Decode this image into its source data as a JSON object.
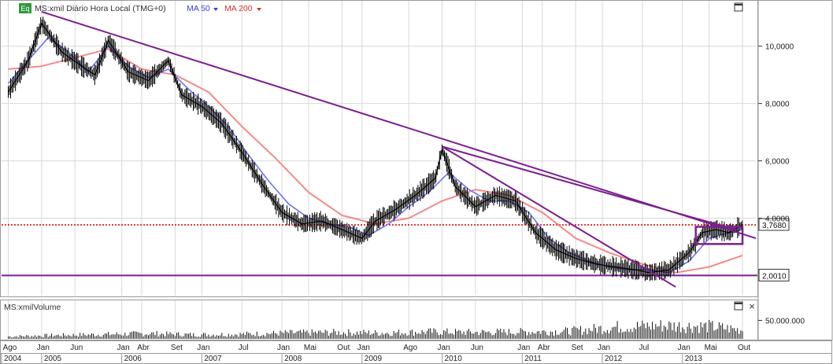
{
  "header": {
    "eq_badge": "Eq",
    "symbol_label": "MS:xmil Diário Hora Local (TMG+0)",
    "ma50_label": "MA 50",
    "ma200_label": "MA 200",
    "window_button": "□"
  },
  "volume_panel": {
    "label": "MS:xmilVolume",
    "restore_button": "□",
    "close_button": "×"
  },
  "colors": {
    "price": "#000000",
    "ma50": "#6f74f2",
    "ma200": "#f28a8a",
    "trendline": "#7b1f8f",
    "level_line": "#d00000",
    "grid": "#d8d8d8",
    "badge_green": "#2e9a3c"
  },
  "chart_data": [
    {
      "type": "line",
      "panel": "price",
      "series": [
        {
          "name": "MS:xmil",
          "x": [
            "2004-08",
            "2004-11",
            "2005-01",
            "2005-04",
            "2005-07",
            "2005-09",
            "2005-11",
            "2006-02",
            "2006-05",
            "2006-08",
            "2006-10",
            "2007-01",
            "2007-04",
            "2007-07",
            "2007-10",
            "2008-01",
            "2008-04",
            "2008-07",
            "2008-10",
            "2009-01",
            "2009-03",
            "2009-06",
            "2009-09",
            "2009-12",
            "2010-01",
            "2010-03",
            "2010-06",
            "2010-09",
            "2010-12",
            "2011-03",
            "2011-06",
            "2011-09",
            "2011-12",
            "2012-03",
            "2012-06",
            "2012-08",
            "2012-11",
            "2013-02",
            "2013-04",
            "2013-06",
            "2013-08",
            "2013-10"
          ],
          "values": [
            8.4,
            9.5,
            10.8,
            9.8,
            9.3,
            9.0,
            10.2,
            9.1,
            8.8,
            9.5,
            8.3,
            7.9,
            7.3,
            6.3,
            5.2,
            4.2,
            3.8,
            3.9,
            3.6,
            3.3,
            3.9,
            4.3,
            4.8,
            5.4,
            6.4,
            5.1,
            4.4,
            4.8,
            4.6,
            3.5,
            2.9,
            2.6,
            2.4,
            2.3,
            2.2,
            2.1,
            2.2,
            2.8,
            3.5,
            3.6,
            3.5,
            3.77
          ]
        },
        {
          "name": "MA 50",
          "x": [
            "2004-08",
            "2004-11",
            "2005-02",
            "2005-05",
            "2005-08",
            "2005-11",
            "2006-02",
            "2006-05",
            "2006-08",
            "2006-11",
            "2007-02",
            "2007-05",
            "2007-08",
            "2007-11",
            "2008-02",
            "2008-05",
            "2008-08",
            "2008-11",
            "2009-02",
            "2009-05",
            "2009-08",
            "2009-11",
            "2010-02",
            "2010-05",
            "2010-08",
            "2010-11",
            "2011-02",
            "2011-05",
            "2011-08",
            "2011-11",
            "2012-02",
            "2012-05",
            "2012-08",
            "2012-11",
            "2013-02",
            "2013-05",
            "2013-08",
            "2013-10"
          ],
          "values": [
            8.7,
            9.5,
            10.3,
            9.8,
            9.1,
            10.0,
            9.3,
            8.9,
            9.2,
            8.5,
            7.9,
            7.2,
            6.2,
            5.3,
            4.5,
            4.0,
            3.8,
            3.7,
            3.4,
            3.8,
            4.4,
            4.9,
            5.6,
            5.0,
            4.6,
            4.6,
            4.2,
            3.3,
            2.8,
            2.5,
            2.3,
            2.2,
            2.2,
            2.1,
            2.5,
            3.3,
            3.5,
            3.6
          ]
        },
        {
          "name": "MA 200",
          "x": [
            "2004-08",
            "2005-01",
            "2005-06",
            "2005-11",
            "2006-04",
            "2006-09",
            "2007-02",
            "2007-07",
            "2007-12",
            "2008-05",
            "2008-10",
            "2009-03",
            "2009-08",
            "2010-01",
            "2010-06",
            "2010-11",
            "2011-04",
            "2011-09",
            "2012-02",
            "2012-07",
            "2012-12",
            "2013-05",
            "2013-10"
          ],
          "values": [
            9.2,
            9.3,
            9.6,
            9.9,
            9.2,
            9.0,
            8.4,
            7.2,
            6.1,
            4.9,
            4.1,
            3.8,
            4.0,
            4.6,
            5.0,
            4.8,
            4.2,
            3.3,
            2.8,
            2.4,
            2.1,
            2.3,
            2.7
          ]
        }
      ],
      "horizontal_lines": [
        {
          "label": "3,7680",
          "value": 3.768,
          "style": "dotted"
        },
        {
          "label": "2,0010",
          "value": 2.001,
          "style": "solid"
        }
      ],
      "trendlines": [
        {
          "from": [
            "2005-01",
            11.2
          ],
          "to": [
            "2013-12",
            3.3
          ]
        },
        {
          "from": [
            "2010-01",
            6.5
          ],
          "to": [
            "2013-09",
            3.6
          ]
        },
        {
          "from": [
            "2010-01",
            6.5
          ],
          "to": [
            "2012-12",
            1.6
          ]
        }
      ],
      "annotation_box": {
        "from": [
          "2013-03",
          3.1
        ],
        "to": [
          "2013-10",
          3.7
        ]
      },
      "yticks": [
        "10,0000",
        "8,0000",
        "6,0000",
        "4,0000"
      ],
      "ytick_values": [
        10,
        8,
        6,
        4
      ],
      "ylim": [
        1.3,
        11.5
      ],
      "xlim": [
        "2004-07",
        "2013-12"
      ],
      "grid": true
    },
    {
      "type": "bar",
      "panel": "volume",
      "yticks": [
        "50.000.000"
      ],
      "ytick_values": [
        50000000
      ],
      "ylim": [
        0,
        100000000
      ],
      "x": [
        "2004-08",
        "2005-03",
        "2005-10",
        "2006-05",
        "2006-12",
        "2007-07",
        "2008-02",
        "2008-09",
        "2009-04",
        "2009-11",
        "2010-06",
        "2011-01",
        "2011-08",
        "2012-03",
        "2012-10",
        "2013-05",
        "2013-10"
      ],
      "values": [
        8000000,
        12000000,
        15000000,
        18000000,
        14000000,
        16000000,
        20000000,
        22000000,
        20000000,
        24000000,
        22000000,
        24000000,
        26000000,
        40000000,
        45000000,
        42000000,
        30000000
      ]
    }
  ],
  "x_axis": {
    "month_labels": [
      {
        "text": "Ago",
        "date": "2004-08"
      },
      {
        "text": "Jan",
        "date": "2005-01"
      },
      {
        "text": "Jun",
        "date": "2005-06"
      },
      {
        "text": "Jan",
        "date": "2006-01"
      },
      {
        "text": "Abr",
        "date": "2006-04"
      },
      {
        "text": "Set",
        "date": "2006-09"
      },
      {
        "text": "Jan",
        "date": "2007-01"
      },
      {
        "text": "Jul",
        "date": "2007-07"
      },
      {
        "text": "Jan",
        "date": "2008-01"
      },
      {
        "text": "Mai",
        "date": "2008-05"
      },
      {
        "text": "Out",
        "date": "2008-10"
      },
      {
        "text": "Jan",
        "date": "2009-01"
      },
      {
        "text": "Ago",
        "date": "2009-08"
      },
      {
        "text": "Jan",
        "date": "2010-01"
      },
      {
        "text": "Jun",
        "date": "2010-06"
      },
      {
        "text": "Jan",
        "date": "2011-01"
      },
      {
        "text": "Abr",
        "date": "2011-04"
      },
      {
        "text": "Set",
        "date": "2011-09"
      },
      {
        "text": "Jan",
        "date": "2012-01"
      },
      {
        "text": "Jul",
        "date": "2012-07"
      },
      {
        "text": "Jan",
        "date": "2013-01"
      },
      {
        "text": "Mai",
        "date": "2013-05"
      },
      {
        "text": "Out",
        "date": "2013-10"
      }
    ],
    "year_labels": [
      {
        "text": "2004",
        "date": "2004-07"
      },
      {
        "text": "2005",
        "date": "2005-01"
      },
      {
        "text": "2006",
        "date": "2006-01"
      },
      {
        "text": "2007",
        "date": "2007-01"
      },
      {
        "text": "2008",
        "date": "2008-01"
      },
      {
        "text": "2009",
        "date": "2009-01"
      },
      {
        "text": "2010",
        "date": "2010-01"
      },
      {
        "text": "2011",
        "date": "2011-01"
      },
      {
        "text": "2012",
        "date": "2012-01"
      },
      {
        "text": "2013",
        "date": "2013-01"
      }
    ]
  }
}
